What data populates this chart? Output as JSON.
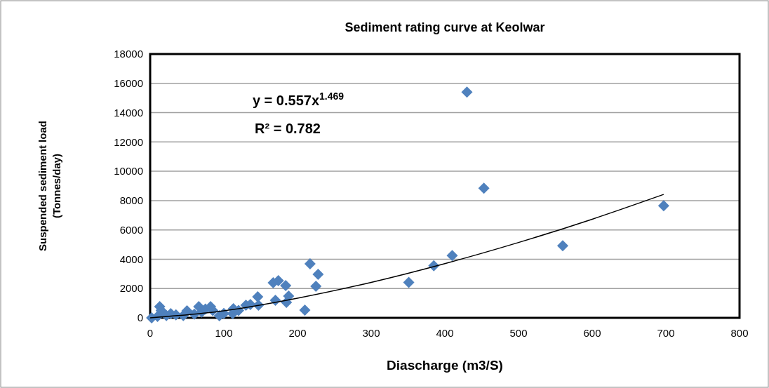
{
  "chart_data": {
    "type": "scatter",
    "title": "Sediment rating curve at Keolwar",
    "xlabel": "Diascharge (m3/S)",
    "ylabel": "Suspended sediment load (Tonnes/day)",
    "marker": "diamond",
    "grid": "y",
    "xlim": [
      0,
      800
    ],
    "xticks": [
      0,
      100,
      200,
      300,
      400,
      500,
      600,
      700,
      800
    ],
    "ylim": [
      0,
      18000
    ],
    "yticks": [
      0,
      2000,
      4000,
      6000,
      8000,
      10000,
      12000,
      14000,
      16000,
      18000
    ],
    "annotations": [
      "y = 0.557x$^{1.469}$",
      "R² = 0.782"
    ],
    "series": [
      {
        "color": "#4f81bd",
        "x": [
          2,
          10,
          13,
          15,
          22,
          28,
          35,
          45,
          50,
          60,
          66,
          70,
          75,
          82,
          85,
          94,
          100,
          112,
          113,
          120,
          130,
          136,
          146,
          147,
          167,
          170,
          174,
          184,
          185,
          188,
          210,
          217,
          225,
          228,
          351,
          385,
          410,
          430,
          453,
          560,
          697
        ],
        "values": [
          0,
          100,
          770,
          500,
          150,
          290,
          200,
          150,
          480,
          250,
          770,
          400,
          600,
          770,
          500,
          140,
          300,
          290,
          620,
          500,
          860,
          910,
          1440,
          860,
          2390,
          1200,
          2540,
          2200,
          1050,
          1480,
          530,
          3690,
          2150,
          2970,
          2420,
          3550,
          4250,
          15400,
          8850,
          4920,
          7650
        ]
      },
      {
        "type": "line",
        "color": "#000000",
        "marker": "none",
        "x": [
          0,
          100,
          200,
          300,
          400,
          500,
          600,
          697
        ],
        "values": [
          0,
          480,
          1340,
          2420,
          3700,
          5140,
          6730,
          8420
        ]
      }
    ]
  }
}
